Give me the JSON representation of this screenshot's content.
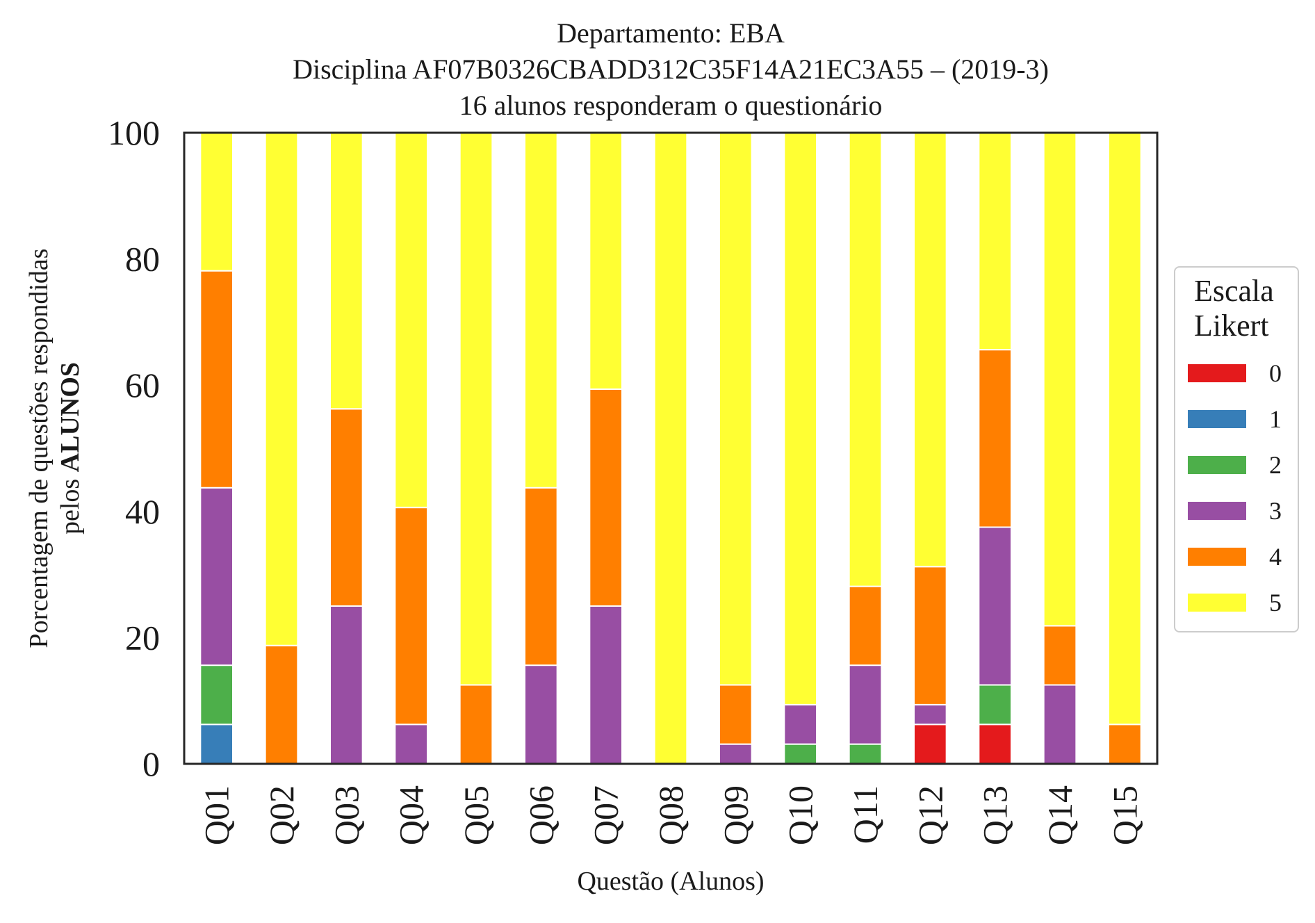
{
  "chart_data": {
    "type": "bar",
    "stacked": true,
    "title_lines": [
      "Departamento: EBA",
      "Disciplina AF07B0326CBADD312C35F14A21EC3A55 – (2019-3)",
      "16 alunos responderam o questionário"
    ],
    "xlabel": "Questão (Alunos)",
    "ylabel_line1": "Porcentagem de questões respondidas",
    "ylabel_line2_prefix": "pelos ",
    "ylabel_line2_bold": "ALUNOS",
    "ylim": [
      0,
      100
    ],
    "yticks": [
      "0",
      "20",
      "40",
      "60",
      "80",
      "100"
    ],
    "grid": false,
    "legend_position": "right",
    "legend_title_lines": [
      "Escala",
      "Likert"
    ],
    "categories": [
      "Q01",
      "Q02",
      "Q03",
      "Q04",
      "Q05",
      "Q06",
      "Q07",
      "Q08",
      "Q09",
      "Q10",
      "Q11",
      "Q12",
      "Q13",
      "Q14",
      "Q15"
    ],
    "series": [
      {
        "name": "0",
        "color": "#e41a1c",
        "values": [
          0,
          0,
          0,
          0,
          0,
          0,
          0,
          0,
          0,
          0,
          0,
          6.25,
          6.25,
          0,
          0
        ]
      },
      {
        "name": "1",
        "color": "#377eb8",
        "values": [
          6.25,
          0,
          0,
          0,
          0,
          0,
          0,
          0,
          0,
          0,
          0,
          0,
          0,
          0,
          0
        ]
      },
      {
        "name": "2",
        "color": "#4daf4a",
        "values": [
          9.375,
          0,
          0,
          0,
          0,
          0,
          0,
          0,
          0,
          3.125,
          3.125,
          0,
          6.25,
          0,
          0
        ]
      },
      {
        "name": "3",
        "color": "#984ea3",
        "values": [
          28.125,
          0,
          25,
          6.25,
          0,
          15.625,
          25,
          0,
          3.125,
          6.25,
          12.5,
          3.125,
          25,
          12.5,
          0
        ]
      },
      {
        "name": "4",
        "color": "#ff7f00",
        "values": [
          34.375,
          18.75,
          31.25,
          34.375,
          12.5,
          28.125,
          34.375,
          0,
          9.375,
          0,
          12.5,
          21.875,
          28.125,
          9.375,
          6.25
        ]
      },
      {
        "name": "5",
        "color": "#ffff33",
        "values": [
          21.875,
          81.25,
          43.75,
          59.375,
          87.5,
          56.25,
          40.625,
          100,
          87.5,
          90.625,
          71.875,
          68.75,
          34.375,
          78.125,
          93.75
        ]
      }
    ]
  }
}
